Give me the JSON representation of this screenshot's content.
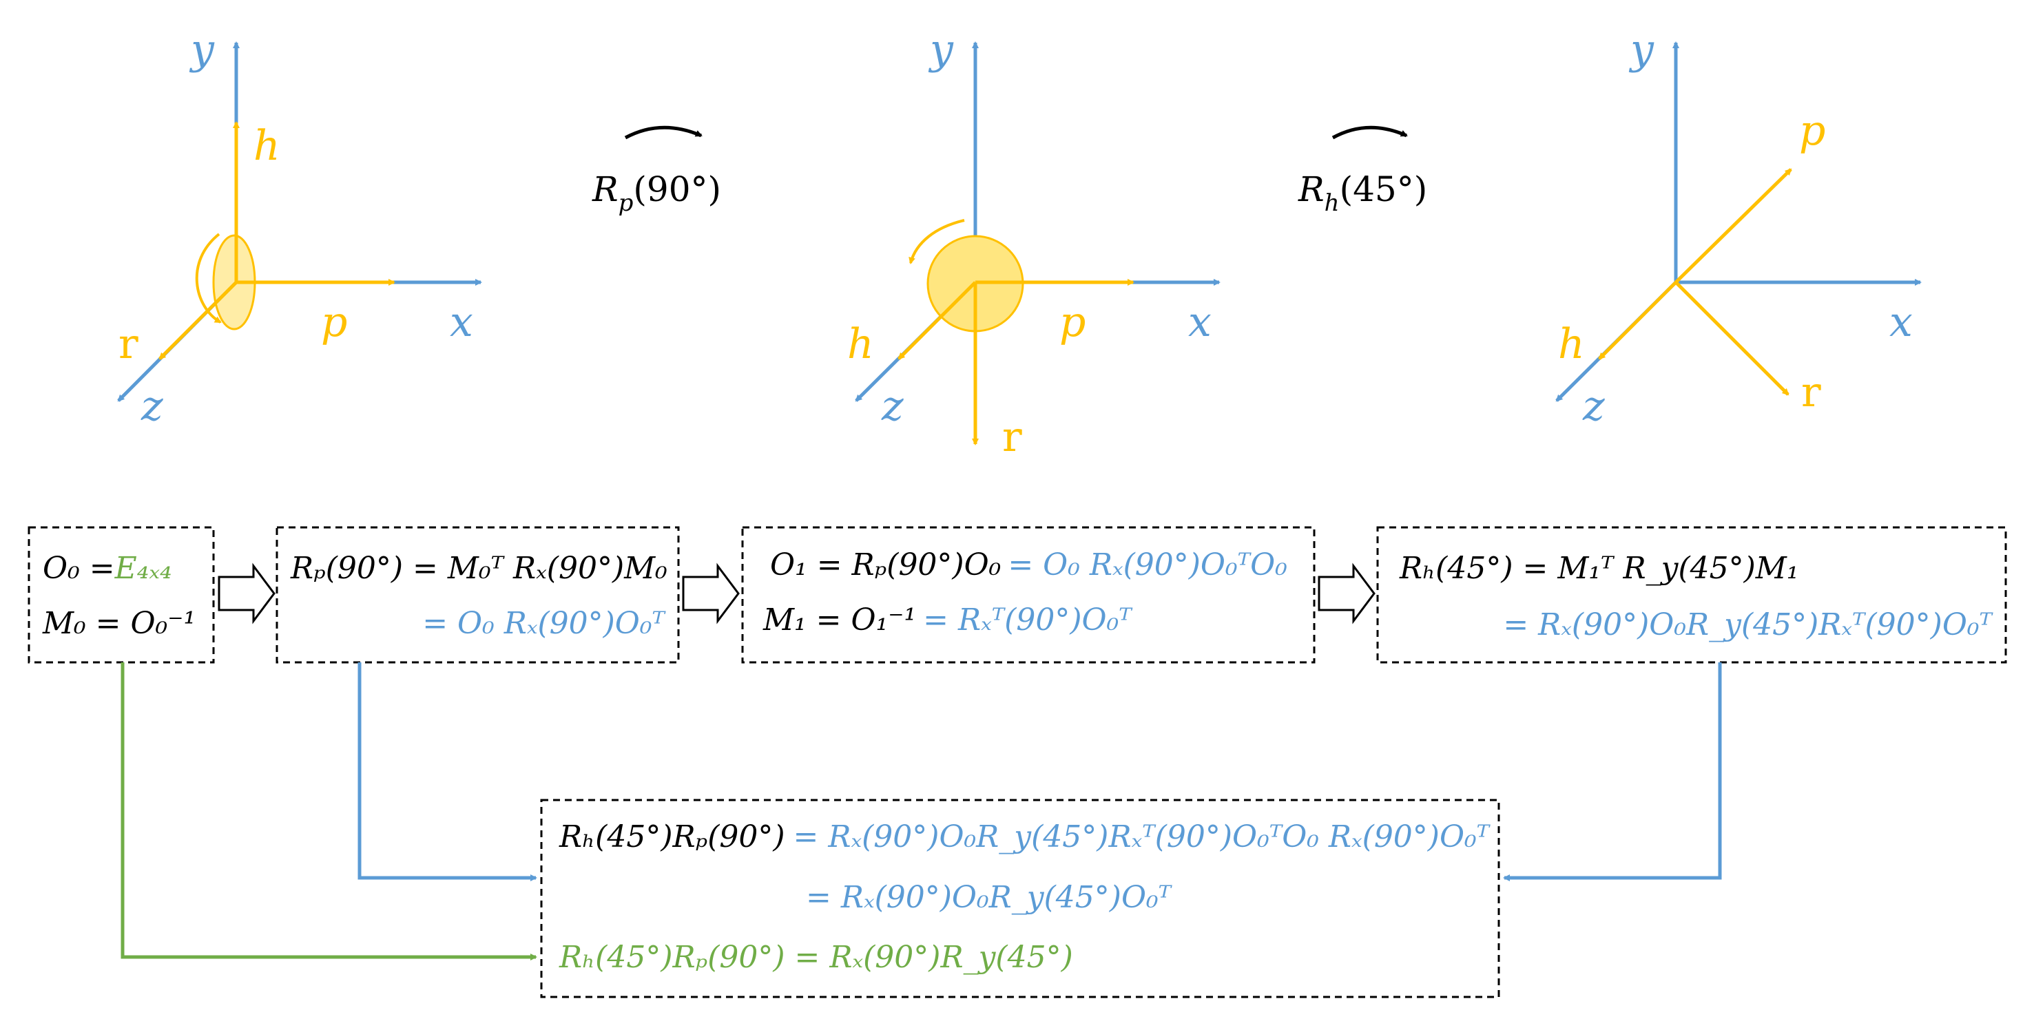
{
  "colors": {
    "blue": "#5b9bd5",
    "yellow": "#ffc000",
    "green": "#70ad47",
    "black": "#000000",
    "disc_fill": "#ffe680"
  },
  "frames": [
    {
      "axes": {
        "y": "y",
        "x": "x",
        "z": "z"
      },
      "body_axes": {
        "h": "h",
        "p": "p",
        "r": "r"
      }
    },
    {
      "axes": {
        "y": "y",
        "x": "x",
        "z": "z"
      },
      "body_axes": {
        "h": "h",
        "p": "p",
        "r": "r"
      }
    },
    {
      "axes": {
        "y": "y",
        "x": "x",
        "z": "z"
      },
      "body_axes": {
        "h": "h",
        "p": "p",
        "r": "r"
      }
    }
  ],
  "rotations": [
    {
      "base": "R",
      "sub": "p",
      "arg": "(90°)"
    },
    {
      "base": "R",
      "sub": "h",
      "arg": "(45°)"
    }
  ],
  "boxes": {
    "box1": {
      "line1_black": "O₀ =",
      "line1_green": "E₄ₓ₄",
      "line2_black": "M₀ = O₀⁻¹"
    },
    "box2": {
      "line1_black": "Rₚ(90°) = M₀ᵀ Rₓ(90°)M₀",
      "line2_blue": "= O₀ Rₓ(90°)O₀ᵀ"
    },
    "box3": {
      "line1_black": "O₁ = Rₚ(90°)O₀",
      "line1_blue": "= O₀ Rₓ(90°)O₀ᵀO₀",
      "line2_black": "M₁ = O₁⁻¹",
      "line2_blue": "= Rₓᵀ(90°)O₀ᵀ"
    },
    "box4": {
      "line1_black": "Rₕ(45°) = M₁ᵀ R_y(45°)M₁",
      "line2_blue": "= Rₓ(90°)O₀R_y(45°)Rₓᵀ(90°)O₀ᵀ"
    },
    "result": {
      "line1_black": "Rₕ(45°)Rₚ(90°)",
      "line1_blue": "= Rₓ(90°)O₀R_y(45°)Rₓᵀ(90°)O₀ᵀO₀ Rₓ(90°)O₀ᵀ",
      "line2_blue": "= Rₓ(90°)O₀R_y(45°)O₀ᵀ",
      "line3_green": "Rₕ(45°)Rₚ(90°) = Rₓ(90°)R_y(45°)"
    }
  }
}
